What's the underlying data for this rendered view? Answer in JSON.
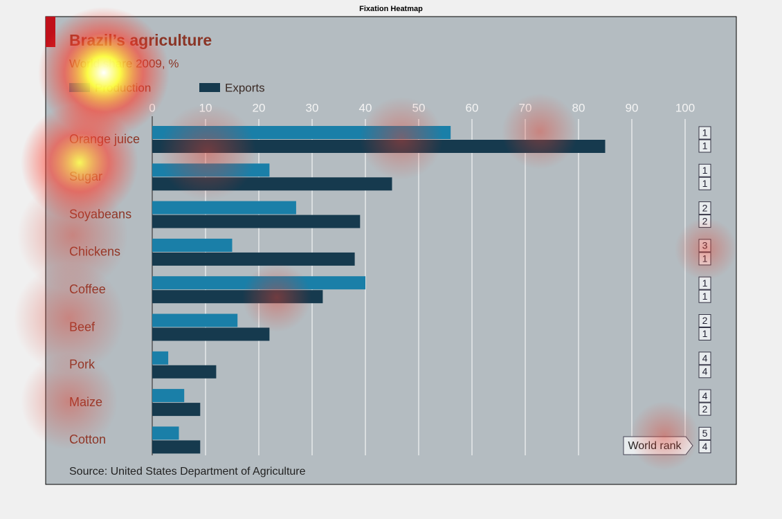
{
  "figure_title": "Fixation Heatmap",
  "chart_data": {
    "type": "bar",
    "orientation": "horizontal",
    "title": "Brazil’s agriculture",
    "subtitle": "World share 2009, %",
    "categories": [
      "Orange juice",
      "Sugar",
      "Soyabeans",
      "Chickens",
      "Coffee",
      "Beef",
      "Pork",
      "Maize",
      "Cotton"
    ],
    "series": [
      {
        "name": "Production",
        "color": "#1a7fa8",
        "values": [
          56,
          22,
          27,
          15,
          40,
          16,
          3,
          6,
          5
        ],
        "ranks": [
          1,
          1,
          2,
          3,
          1,
          2,
          4,
          4,
          5
        ]
      },
      {
        "name": "Exports",
        "color": "#163a4e",
        "values": [
          85,
          45,
          39,
          38,
          32,
          22,
          12,
          9,
          9
        ],
        "ranks": [
          1,
          1,
          2,
          1,
          1,
          1,
          4,
          2,
          4
        ]
      }
    ],
    "xlim": [
      0,
      100
    ],
    "xticks": [
      0,
      10,
      20,
      30,
      40,
      50,
      60,
      70,
      80,
      90,
      100
    ],
    "grid": true,
    "rank_label": "World rank",
    "source": "Source: United States Department of Agriculture"
  }
}
